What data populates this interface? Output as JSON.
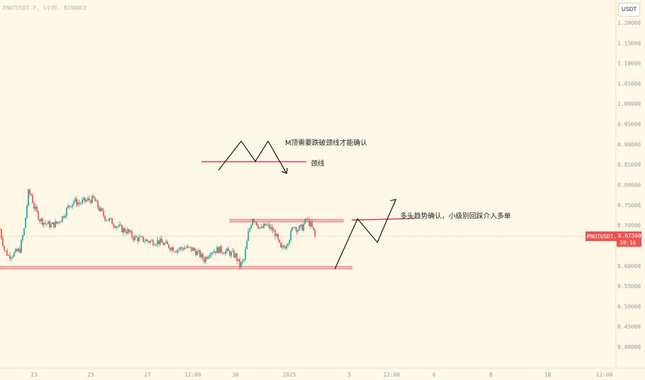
{
  "header": {
    "symbol_line": "PNUTUSDT.P, 1小时, BINANCE",
    "currency": "USDT"
  },
  "colors": {
    "background": "#fdf9e6",
    "up": "#26a69a",
    "down": "#ef5350",
    "zone_fill": "#f6a9a9",
    "zone_stroke": "#e57373",
    "neckline": "#d32f4f",
    "drawing": "#111111",
    "price_tag": "#ef5350",
    "axis_text": "#9a9a9a"
  },
  "chart_data": {
    "type": "candlestick",
    "y_axis": {
      "position": "right",
      "ticks": [
        0.4,
        0.45,
        0.5,
        0.55,
        0.6,
        0.65,
        0.7,
        0.75,
        0.8,
        0.85,
        0.9,
        0.95,
        1.0,
        1.05,
        1.1,
        1.15,
        1.2
      ],
      "tick_labels": [
        "0.40000",
        "0.45000",
        "0.50000",
        "0.55000",
        "0.60000",
        "0.65000",
        "0.70000",
        "0.75000",
        "0.80000",
        "0.85000",
        "0.90000",
        "0.95000",
        "1.00000",
        "1.05000",
        "1.10000",
        "1.15000",
        "1.20000"
      ],
      "range": [
        0.383,
        1.205
      ]
    },
    "x_axis": {
      "range": [
        0,
        220
      ],
      "ticks": [
        {
          "label": "23",
          "t": 12
        },
        {
          "label": "25",
          "t": 32
        },
        {
          "label": "27",
          "t": 52
        },
        {
          "label": "12:00",
          "t": 68
        },
        {
          "label": "30",
          "t": 83
        },
        {
          "label": "2025",
          "t": 102
        },
        {
          "label": "3",
          "t": 123
        },
        {
          "label": "12:00",
          "t": 138
        },
        {
          "label": "6",
          "t": 153
        },
        {
          "label": "8",
          "t": 173
        },
        {
          "label": "10",
          "t": 193
        },
        {
          "label": "12:00",
          "t": 213
        }
      ]
    },
    "price_path": [
      [
        0,
        0.69
      ],
      [
        1.5,
        0.64
      ],
      [
        3,
        0.625
      ],
      [
        5,
        0.63
      ],
      [
        7,
        0.64
      ],
      [
        8.5,
        0.69
      ],
      [
        10,
        0.78
      ],
      [
        11,
        0.775
      ],
      [
        12,
        0.745
      ],
      [
        14,
        0.715
      ],
      [
        16,
        0.705
      ],
      [
        18,
        0.7
      ],
      [
        20,
        0.705
      ],
      [
        22,
        0.72
      ],
      [
        24,
        0.745
      ],
      [
        26,
        0.76
      ],
      [
        28,
        0.755
      ],
      [
        30,
        0.76
      ],
      [
        33,
        0.765
      ],
      [
        35,
        0.74
      ],
      [
        37,
        0.72
      ],
      [
        39,
        0.71
      ],
      [
        41,
        0.7
      ],
      [
        43,
        0.69
      ],
      [
        45,
        0.685
      ],
      [
        47,
        0.67
      ],
      [
        50,
        0.665
      ],
      [
        53,
        0.66
      ],
      [
        56,
        0.66
      ],
      [
        59,
        0.65
      ],
      [
        62,
        0.64
      ],
      [
        65,
        0.645
      ],
      [
        68,
        0.64
      ],
      [
        70,
        0.63
      ],
      [
        72,
        0.615
      ],
      [
        74,
        0.635
      ],
      [
        77,
        0.64
      ],
      [
        80,
        0.635
      ],
      [
        83,
        0.625
      ],
      [
        84.5,
        0.6
      ],
      [
        86,
        0.615
      ],
      [
        87.5,
        0.68
      ],
      [
        89,
        0.72
      ],
      [
        90.5,
        0.705
      ],
      [
        92,
        0.69
      ],
      [
        93.5,
        0.7
      ],
      [
        95,
        0.695
      ],
      [
        97,
        0.68
      ],
      [
        99,
        0.64
      ],
      [
        100.5,
        0.65
      ],
      [
        102,
        0.67
      ],
      [
        103.5,
        0.7
      ],
      [
        105,
        0.69
      ],
      [
        106.5,
        0.695
      ],
      [
        108,
        0.715
      ],
      [
        109.5,
        0.7
      ],
      [
        110.5,
        0.685
      ],
      [
        111,
        0.673
      ]
    ],
    "last_price": 0.673,
    "last_price_label": "0.67300",
    "countdown_label": "39:16",
    "price_tag_symbol": "PNUTUSDT.P",
    "zones": [
      {
        "name": "resistance-zone",
        "t0": 81,
        "t1": 121,
        "y0": 0.708,
        "y1": 0.715
      },
      {
        "name": "support-zone",
        "t0": 0,
        "t1": 124,
        "y0": 0.592,
        "y1": 0.599
      }
    ],
    "lines": [
      {
        "name": "neckline-line",
        "t0": 71,
        "t1": 108,
        "y0": 0.857,
        "y1": 0.857,
        "color": "neckline"
      },
      {
        "name": "target-resistance-line",
        "t0": 124,
        "t1": 146,
        "y0": 0.713,
        "y1": 0.717,
        "color": "neckline"
      }
    ],
    "paths": [
      {
        "name": "m-top-path",
        "points": [
          [
            77,
            0.836
          ],
          [
            85,
            0.908
          ],
          [
            90,
            0.858
          ],
          [
            94.5,
            0.908
          ],
          [
            101,
            0.828
          ]
        ]
      },
      {
        "name": "bullish-path",
        "points": [
          [
            118,
            0.592
          ],
          [
            126,
            0.716
          ],
          [
            133,
            0.658
          ],
          [
            139.5,
            0.764
          ]
        ]
      }
    ],
    "arrows": [
      {
        "name": "m-top-arrow-head",
        "from": [
          101,
          0.828
        ],
        "direction": "down-right"
      },
      {
        "name": "bullish-arrow-head",
        "from": [
          139.5,
          0.764
        ],
        "direction": "up-right"
      }
    ],
    "annotations": [
      {
        "name": "m-top-annotation",
        "text": "M顶需要跌破颈线才能确认",
        "t": 100.5,
        "y": 0.905
      },
      {
        "name": "neckline-annotation",
        "text": "颈线",
        "t": 109.5,
        "y": 0.854
      },
      {
        "name": "bullish-annotation",
        "text": "多头趋势确认，小级别回踩介入多单",
        "t": 141,
        "y": 0.724
      }
    ]
  }
}
